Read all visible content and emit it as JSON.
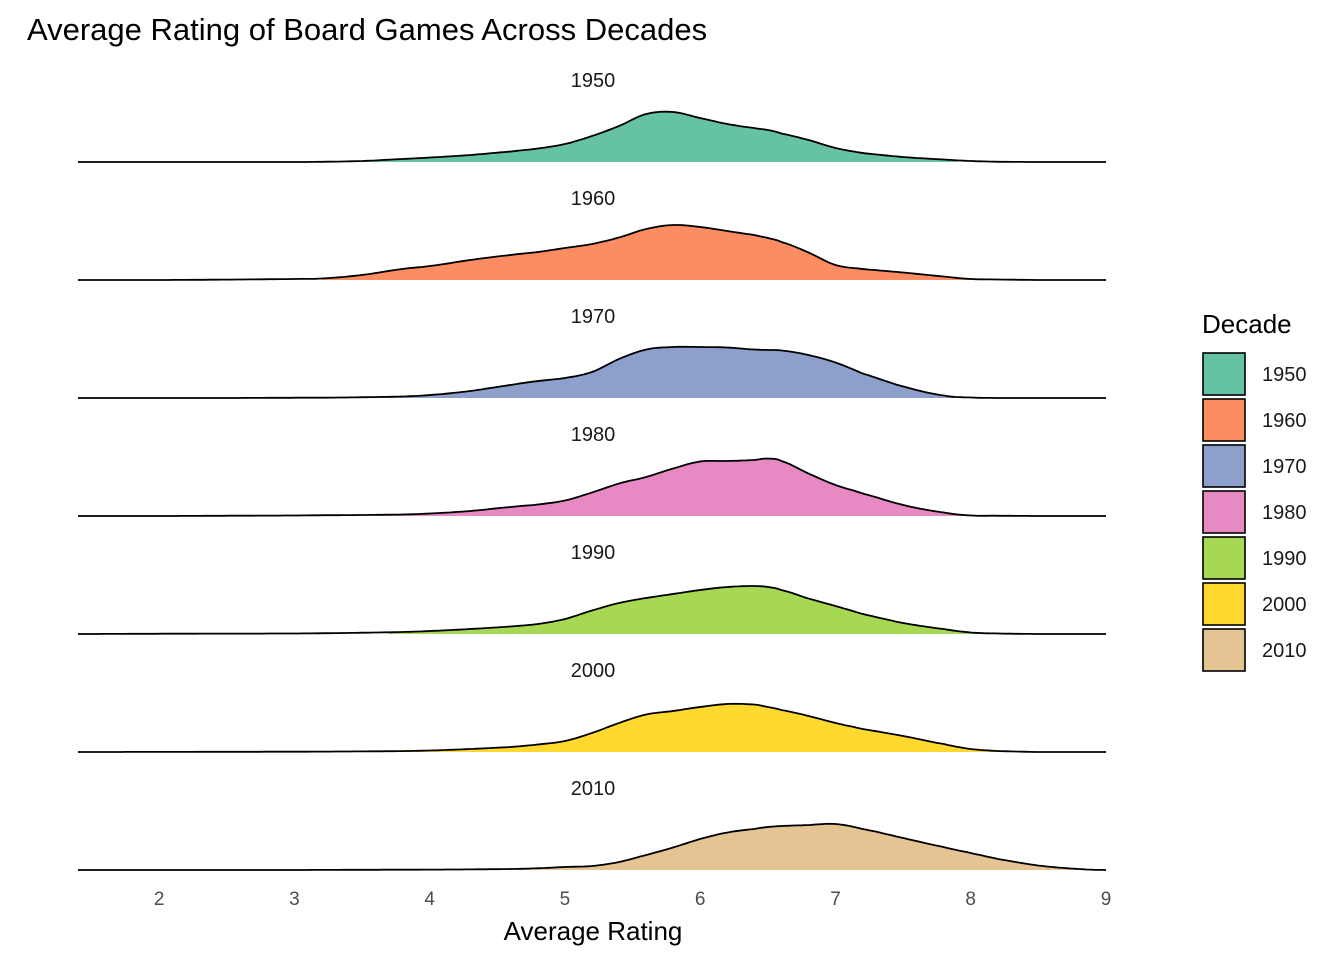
{
  "chart_data": {
    "type": "area",
    "subtype": "ridgeline-density",
    "title": "Average Rating of Board Games Across Decades",
    "xlabel": "Average Rating",
    "ylabel": "",
    "xlim": [
      1.4,
      9.0
    ],
    "x_ticks": [
      2,
      3,
      4,
      5,
      6,
      7,
      8,
      9
    ],
    "grid": false,
    "legend": {
      "title": "Decade",
      "position": "right"
    },
    "x": [
      1.4,
      2.0,
      2.5,
      3.0,
      3.2,
      3.5,
      3.8,
      4.0,
      4.3,
      4.6,
      4.8,
      5.0,
      5.2,
      5.4,
      5.6,
      5.8,
      6.0,
      6.2,
      6.4,
      6.5,
      6.6,
      6.8,
      7.0,
      7.2,
      7.5,
      7.8,
      8.0,
      8.2,
      8.5,
      8.8,
      9.0
    ],
    "series": [
      {
        "name": "1950",
        "color": "#66C2A5",
        "x_range": [
          3.5,
          7.9
        ],
        "density": [
          0,
          0,
          0,
          0,
          0.004,
          0.02,
          0.06,
          0.09,
          0.14,
          0.21,
          0.27,
          0.36,
          0.52,
          0.72,
          0.96,
          1.0,
          0.88,
          0.76,
          0.68,
          0.64,
          0.57,
          0.44,
          0.28,
          0.18,
          0.1,
          0.05,
          0.02,
          0.005,
          0,
          0,
          0
        ]
      },
      {
        "name": "1960",
        "color": "#FC8D62",
        "x_range": [
          3.2,
          8.0
        ],
        "density": [
          0,
          0,
          0.008,
          0.02,
          0.03,
          0.1,
          0.22,
          0.28,
          0.4,
          0.5,
          0.56,
          0.64,
          0.72,
          0.85,
          1.02,
          1.1,
          1.06,
          0.98,
          0.9,
          0.84,
          0.76,
          0.55,
          0.3,
          0.22,
          0.15,
          0.07,
          0.02,
          0.01,
          0,
          0,
          0
        ]
      },
      {
        "name": "1970",
        "color": "#8DA0CB",
        "x_range": [
          3.6,
          8.0
        ],
        "density": [
          0,
          0,
          0,
          0.005,
          0.006,
          0.015,
          0.03,
          0.06,
          0.14,
          0.26,
          0.34,
          0.4,
          0.52,
          0.78,
          0.97,
          1.02,
          1.02,
          1.01,
          0.97,
          0.96,
          0.95,
          0.86,
          0.71,
          0.49,
          0.23,
          0.05,
          0.01,
          0,
          0,
          0,
          0
        ]
      },
      {
        "name": "1980",
        "color": "#E78AC3",
        "x_range": [
          3.6,
          8.0
        ],
        "density": [
          0,
          0,
          0.005,
          0.01,
          0.015,
          0.02,
          0.03,
          0.05,
          0.1,
          0.18,
          0.23,
          0.31,
          0.47,
          0.65,
          0.78,
          0.95,
          1.09,
          1.1,
          1.12,
          1.15,
          1.1,
          0.85,
          0.62,
          0.45,
          0.22,
          0.07,
          0.01,
          0.005,
          0,
          0,
          0
        ]
      },
      {
        "name": "1990",
        "color": "#A6D854",
        "x_range": [
          3.7,
          8.3
        ],
        "density": [
          0,
          0.005,
          0.008,
          0.01,
          0.015,
          0.025,
          0.04,
          0.06,
          0.1,
          0.15,
          0.2,
          0.3,
          0.47,
          0.62,
          0.72,
          0.8,
          0.88,
          0.94,
          0.96,
          0.94,
          0.88,
          0.71,
          0.56,
          0.4,
          0.22,
          0.1,
          0.03,
          0.01,
          0,
          0,
          0
        ]
      },
      {
        "name": "2000",
        "color": "#FFD92F",
        "x_range": [
          3.7,
          8.3
        ],
        "density": [
          0,
          0.002,
          0.004,
          0.006,
          0.008,
          0.012,
          0.018,
          0.03,
          0.06,
          0.1,
          0.15,
          0.22,
          0.38,
          0.58,
          0.75,
          0.82,
          0.9,
          0.96,
          0.95,
          0.9,
          0.84,
          0.72,
          0.58,
          0.46,
          0.32,
          0.16,
          0.06,
          0.02,
          0,
          0,
          0
        ]
      },
      {
        "name": "2010",
        "color": "#E5C494",
        "x_range": [
          4.5,
          8.8
        ],
        "density": [
          0,
          0,
          0,
          0,
          0.002,
          0.004,
          0.006,
          0.008,
          0.012,
          0.02,
          0.035,
          0.06,
          0.08,
          0.16,
          0.3,
          0.45,
          0.62,
          0.75,
          0.82,
          0.86,
          0.88,
          0.9,
          0.92,
          0.82,
          0.64,
          0.46,
          0.34,
          0.22,
          0.09,
          0.02,
          0
        ]
      }
    ]
  }
}
